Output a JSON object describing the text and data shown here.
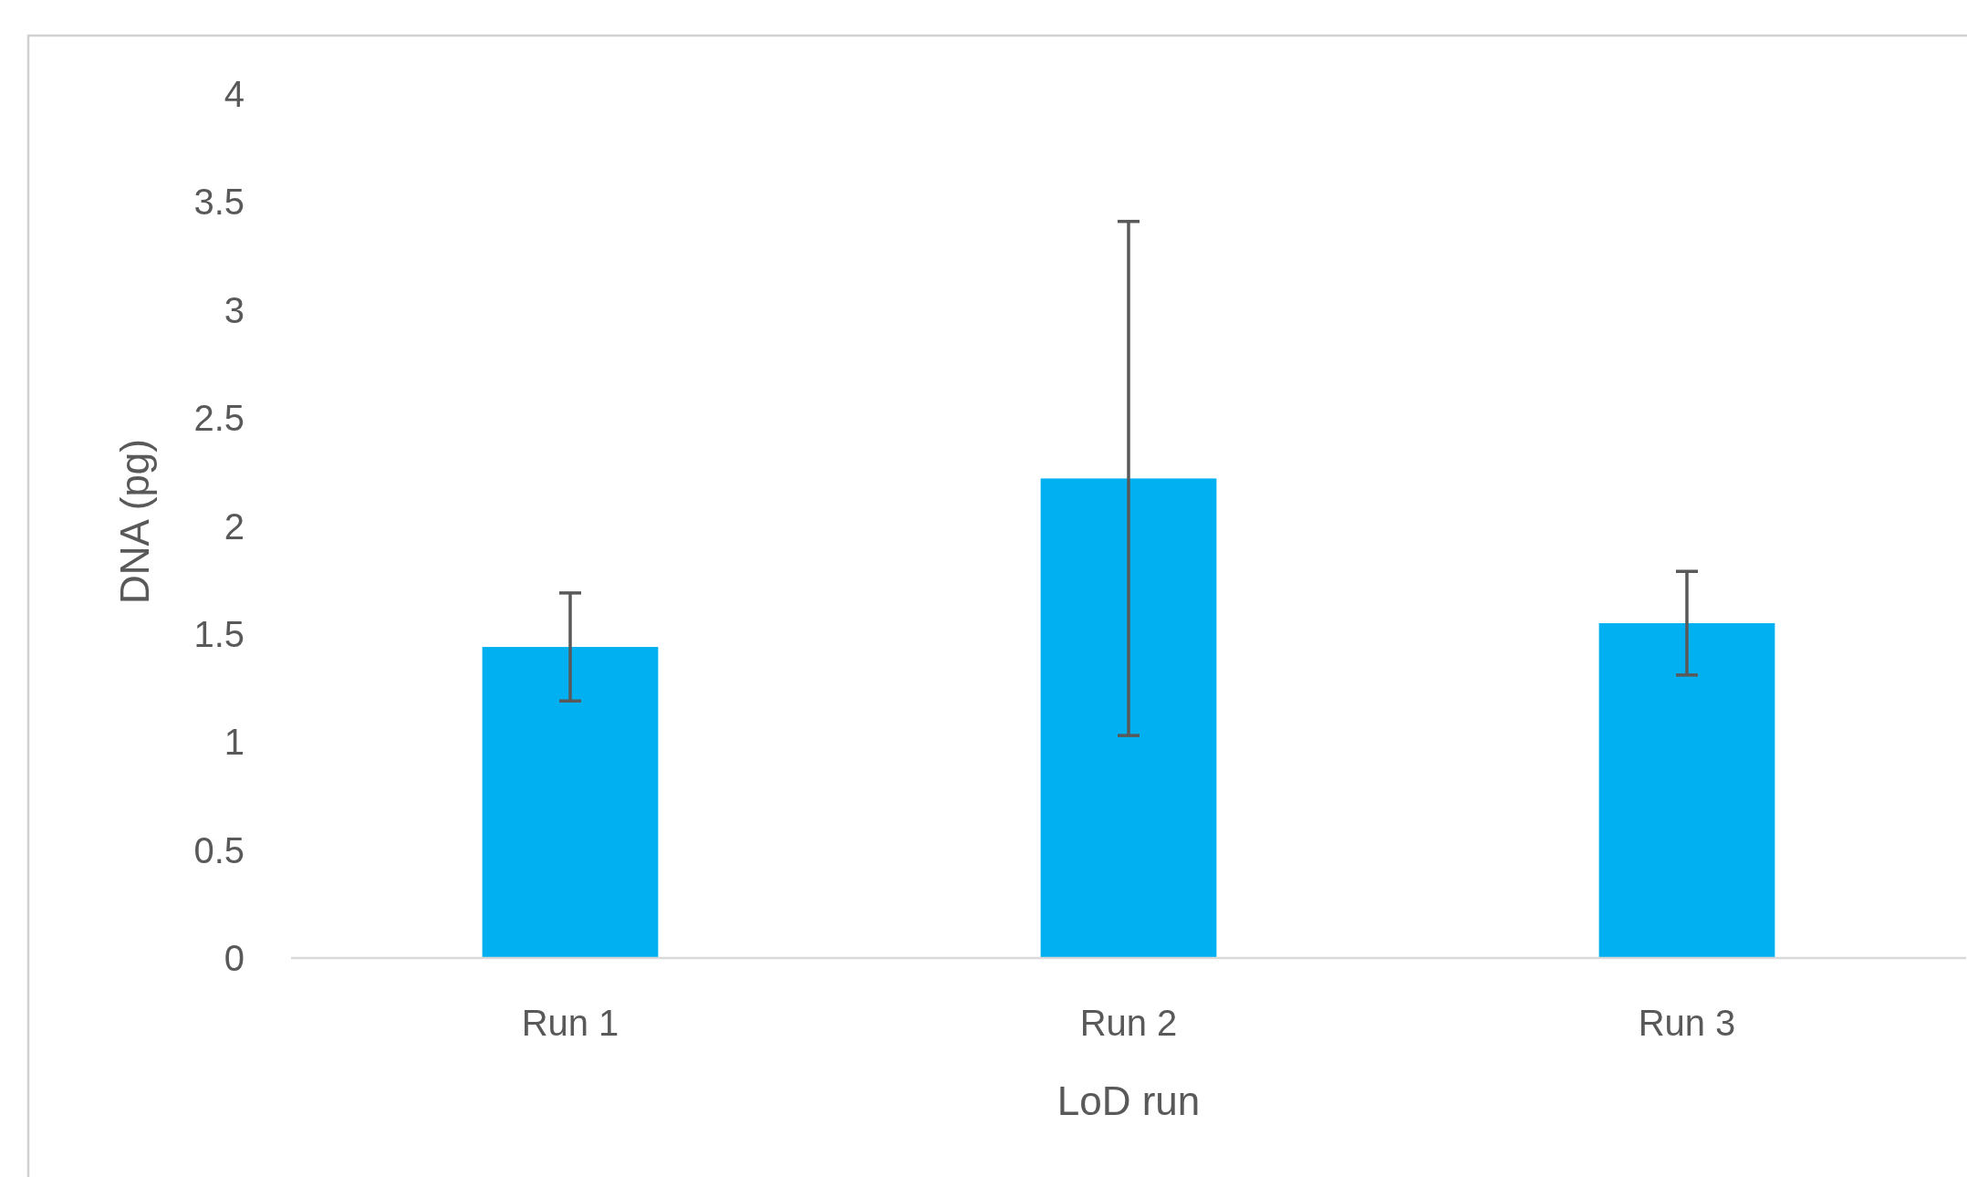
{
  "chart_data": {
    "type": "bar",
    "xlabel": "LoD run",
    "ylabel": "DNA (pg)",
    "categories": [
      "Run 1",
      "Run 2",
      "Run 3"
    ],
    "values": [
      1.44,
      2.22,
      1.55
    ],
    "errors": [
      0.25,
      1.19,
      0.24
    ],
    "color": "#00b0f0",
    "ylim": [
      0,
      4
    ],
    "yticks": [
      0,
      0.5,
      1,
      1.5,
      2,
      2.5,
      3,
      3.5,
      4
    ],
    "grid": false
  }
}
